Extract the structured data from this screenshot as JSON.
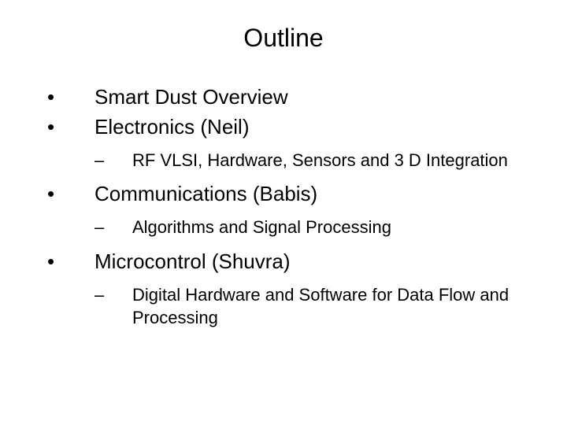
{
  "title": "Outline",
  "items": {
    "b1": "Smart Dust Overview",
    "b2": "Electronics (Neil)",
    "b2_sub": "RF VLSI, Hardware, Sensors and 3 D Integration",
    "b3": "Communications (Babis)",
    "b3_sub": "Algorithms and Signal Processing",
    "b4": "Microcontrol (Shuvra)",
    "b4_sub": "Digital Hardware and Software for Data Flow and Processing"
  },
  "glyphs": {
    "bullet": "•",
    "dash": "–"
  },
  "style": {
    "background": "#ffffff",
    "text_color": "#000000",
    "title_fontsize": 32,
    "l1_fontsize": 26,
    "l2_fontsize": 22
  }
}
